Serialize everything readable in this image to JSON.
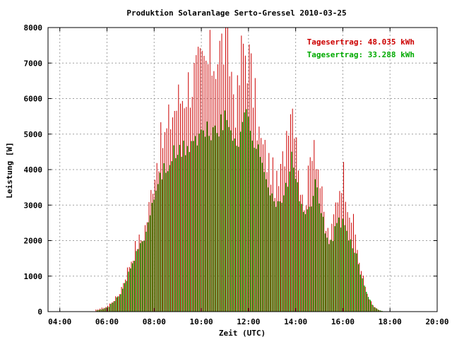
{
  "chart_data": {
    "type": "bar",
    "title": "Produktion Solaranlage Serto-Gressel 2010-03-25",
    "xlabel": "Zeit (UTC)",
    "ylabel": "Leistung [W]",
    "xlim": [
      3.5,
      20.0
    ],
    "ylim": [
      0,
      8000
    ],
    "x_ticks": [
      "04:00",
      "06:00",
      "08:00",
      "10:00",
      "12:00",
      "14:00",
      "16:00",
      "18:00",
      "20:00"
    ],
    "y_ticks": [
      "0",
      "1000",
      "2000",
      "3000",
      "4000",
      "5000",
      "6000",
      "7000",
      "8000"
    ],
    "grid": true,
    "legend_placement": "top-right",
    "annotations": [
      {
        "text": "Tagesertrag: 48.035 kWh",
        "color": "#cc0000"
      },
      {
        "text": "Tagesertrag: 33.288 kWh",
        "color": "#00aa00"
      }
    ],
    "colors": {
      "red_series": "#cc0000",
      "green_series": "#00aa00",
      "frame": "#000000",
      "grid": "#a0a0a0"
    },
    "bar_interval_minutes": 5,
    "series": [
      {
        "color": "#cc0000",
        "values_by_hour": [
          [
            5.5,
            50
          ],
          [
            6.0,
            150
          ],
          [
            6.5,
            500
          ],
          [
            7.0,
            1500
          ],
          [
            7.25,
            2000
          ],
          [
            7.5,
            2200
          ],
          [
            7.75,
            2900
          ],
          [
            8.0,
            4200
          ],
          [
            8.25,
            4900
          ],
          [
            8.5,
            5200
          ],
          [
            8.75,
            5900
          ],
          [
            9.0,
            6200
          ],
          [
            9.25,
            6500
          ],
          [
            9.5,
            6800
          ],
          [
            9.75,
            7000
          ],
          [
            10.0,
            7100
          ],
          [
            10.25,
            7300
          ],
          [
            10.5,
            7500
          ],
          [
            10.75,
            7700
          ],
          [
            11.0,
            8000
          ],
          [
            11.25,
            7200
          ],
          [
            11.5,
            6000
          ],
          [
            11.75,
            7900
          ],
          [
            12.0,
            7600
          ],
          [
            12.25,
            6300
          ],
          [
            12.5,
            5000
          ],
          [
            12.75,
            4600
          ],
          [
            13.0,
            4100
          ],
          [
            13.25,
            3600
          ],
          [
            13.5,
            4600
          ],
          [
            13.75,
            6400
          ],
          [
            14.0,
            5800
          ],
          [
            14.25,
            3200
          ],
          [
            14.5,
            3600
          ],
          [
            14.75,
            5500
          ],
          [
            15.0,
            4000
          ],
          [
            15.25,
            2500
          ],
          [
            15.5,
            2200
          ],
          [
            15.75,
            3400
          ],
          [
            16.0,
            4200
          ],
          [
            16.25,
            3200
          ],
          [
            16.5,
            2400
          ],
          [
            16.75,
            1300
          ],
          [
            17.0,
            600
          ],
          [
            17.25,
            200
          ],
          [
            17.5,
            50
          ],
          [
            17.75,
            0
          ]
        ]
      },
      {
        "color": "#00aa00",
        "values_by_hour": [
          [
            5.5,
            30
          ],
          [
            6.0,
            120
          ],
          [
            6.5,
            500
          ],
          [
            7.0,
            1300
          ],
          [
            7.25,
            1800
          ],
          [
            7.5,
            2200
          ],
          [
            7.75,
            2700
          ],
          [
            8.0,
            3500
          ],
          [
            8.25,
            4000
          ],
          [
            8.5,
            4200
          ],
          [
            8.75,
            4500
          ],
          [
            9.0,
            4600
          ],
          [
            9.25,
            4700
          ],
          [
            9.5,
            4900
          ],
          [
            9.75,
            5000
          ],
          [
            10.0,
            5100
          ],
          [
            10.25,
            5200
          ],
          [
            10.5,
            5300
          ],
          [
            10.75,
            5400
          ],
          [
            11.0,
            5500
          ],
          [
            11.25,
            5200
          ],
          [
            11.5,
            5000
          ],
          [
            11.75,
            5700
          ],
          [
            12.0,
            5500
          ],
          [
            12.25,
            4800
          ],
          [
            12.5,
            4300
          ],
          [
            12.75,
            3900
          ],
          [
            13.0,
            3300
          ],
          [
            13.25,
            3000
          ],
          [
            13.5,
            3400
          ],
          [
            13.75,
            4400
          ],
          [
            14.0,
            3900
          ],
          [
            14.25,
            2700
          ],
          [
            14.5,
            2900
          ],
          [
            14.75,
            3700
          ],
          [
            15.0,
            3000
          ],
          [
            15.25,
            2200
          ],
          [
            15.5,
            2000
          ],
          [
            15.75,
            2700
          ],
          [
            16.0,
            2500
          ],
          [
            16.25,
            2000
          ],
          [
            16.5,
            1700
          ],
          [
            16.75,
            1000
          ],
          [
            17.0,
            500
          ],
          [
            17.25,
            150
          ],
          [
            17.5,
            40
          ],
          [
            17.75,
            0
          ]
        ]
      }
    ]
  }
}
